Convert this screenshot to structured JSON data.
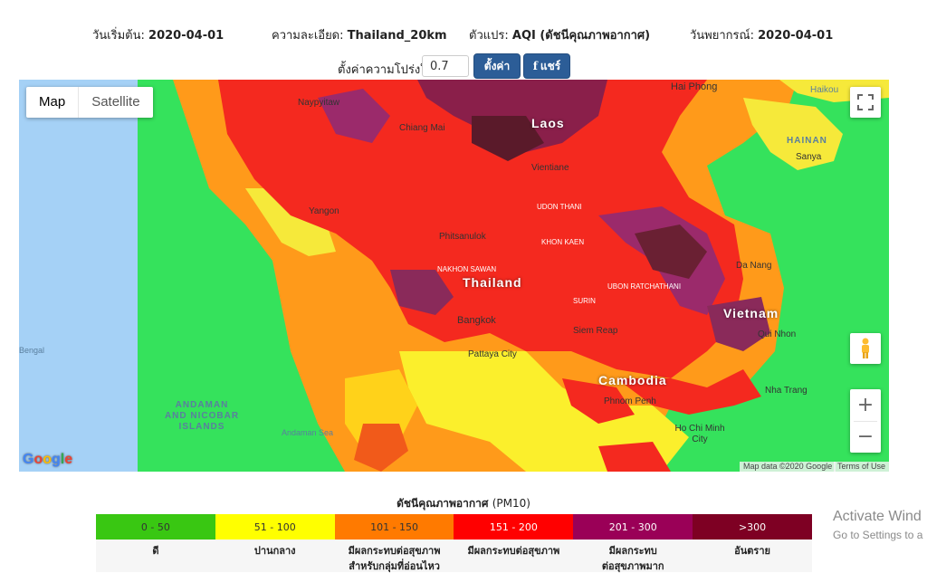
{
  "info": {
    "start_label": "วันเริ่มต้น:",
    "start_value": "2020-04-01",
    "resolution_label": "ความละเอียด:",
    "resolution_value": "Thailand_20km",
    "variable_label": "ตัวแปร:",
    "variable_value": "AQI (ดัชนีคุณภาพอากาศ)",
    "forecast_label": "วันพยากรณ์:",
    "forecast_value": "2020-04-01"
  },
  "controls": {
    "opacity_label": "ตั้งค่าความโปร่งใส",
    "opacity_value": "0.7",
    "set_button": "ตั้งค่า",
    "share_icon": "f",
    "share_button": "แชร์"
  },
  "map": {
    "type_map": "Map",
    "type_satellite": "Satellite",
    "fullscreen_icon": "fullscreen-icon",
    "pegman_icon": "pegman-icon",
    "zoom_in": "+",
    "zoom_out": "−",
    "google_logo": "Google",
    "attribution": "Map data ©2020 Google",
    "terms": "Terms of Use",
    "labels": {
      "naypyitaw": "Naypyitaw",
      "laos": "Laos",
      "hai_phong": "Hai Phong",
      "vientiane": "Vientiane",
      "thailand": "Thailand",
      "bangkok": "Bangkok",
      "vietnam": "Vietnam",
      "cambodia": "Cambodia",
      "phnom_penh": "Phnom Penh",
      "ho_chi_minh": "Ho Chi Minh City",
      "hainan": "HAINAN",
      "sanya": "Sanya",
      "da_nang": "Da Nang",
      "qui_nhon": "Qui Nhon",
      "nha_trang": "Nha Trang",
      "pattaya": "Pattaya City",
      "yangon": "Yangon",
      "bengal": "Bengal",
      "andaman_islands_1": "ANDAMAN",
      "andaman_islands_2": "AND NICOBAR",
      "andaman_islands_3": "ISLANDS",
      "andaman_sea": "Andaman Sea",
      "chiang_mai": "Chiang Mai",
      "siem_reap": "Siem Reap",
      "haikou": "Haikou",
      "udon_thani": "UDON THANI",
      "khon_kaen": "KHON KAEN",
      "phitsanulok": "Phitsanulok",
      "nakhon_sawan": "NAKHON SAWAN",
      "surin": "SURIN",
      "ubon": "UBON RATCHATHANI"
    }
  },
  "legend": {
    "title": "ดัชนีคุณภาพอากาศ",
    "unit": "(PM10)",
    "bands": [
      {
        "range": "0 - 50",
        "label_1": "ดี",
        "label_2": "",
        "color": "#39c712",
        "text_color": "#333333"
      },
      {
        "range": "51 - 100",
        "label_1": "ปานกลาง",
        "label_2": "",
        "color": "#ffff00",
        "text_color": "#333333"
      },
      {
        "range": "101 - 150",
        "label_1": "มีผลกระทบต่อสุขภาพ",
        "label_2": "สำหรับกลุ่มที่อ่อนไหว",
        "color": "#ff7a00",
        "text_color": "#333333"
      },
      {
        "range": "151 - 200",
        "label_1": "มีผลกระทบต่อสุขภาพ",
        "label_2": "",
        "color": "#ff0000",
        "text_color": "#ffffff"
      },
      {
        "range": "201 - 300",
        "label_1": "มีผลกระทบ",
        "label_2": "ต่อสุขภาพมาก",
        "color": "#9a0057",
        "text_color": "#ffffff"
      },
      {
        "range": ">300",
        "label_1": "อันตราย",
        "label_2": "",
        "color": "#7e0023",
        "text_color": "#ffffff"
      }
    ]
  },
  "watermark": {
    "line1": "Activate Wind",
    "line2": "Go to Settings to a"
  }
}
